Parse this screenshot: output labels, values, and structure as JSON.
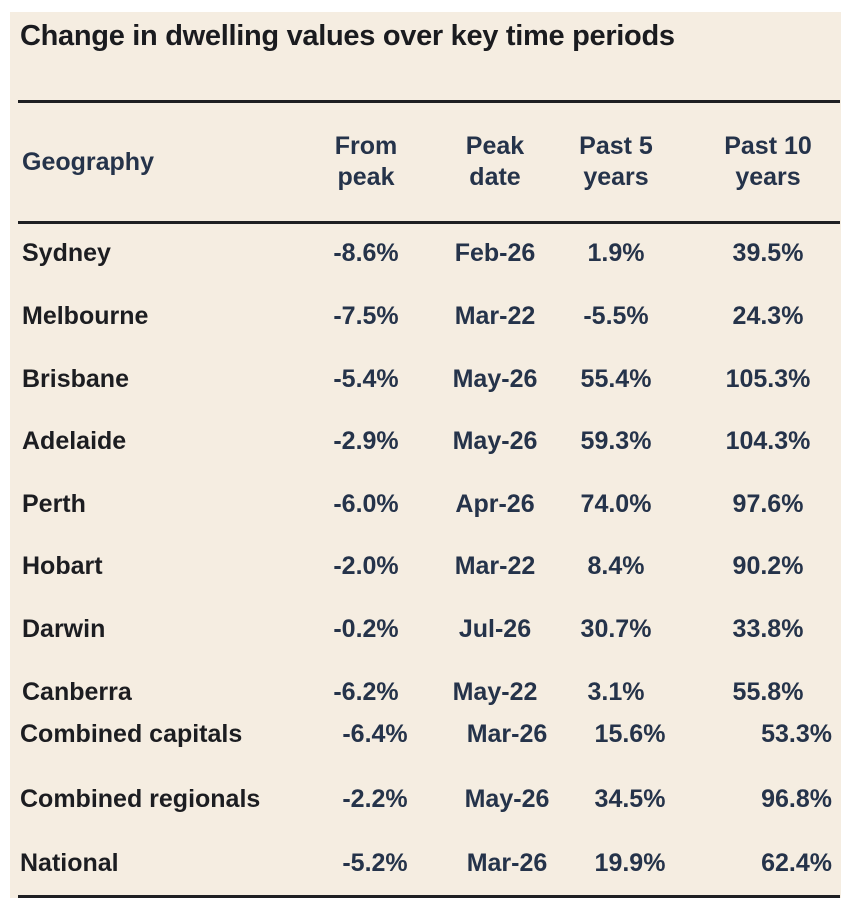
{
  "title": "Change in dwelling values over key time periods",
  "headers": {
    "geography": "Geography",
    "from_peak": [
      "From",
      "peak"
    ],
    "peak_date": [
      "Peak",
      "date"
    ],
    "past5": [
      "Past 5",
      "years"
    ],
    "past10": [
      "Past 10",
      "years"
    ]
  },
  "rows": [
    {
      "geography": "Sydney",
      "from_peak": "-8.6%",
      "peak_date": "Feb-26",
      "past5": "1.9%",
      "past10": "39.5%"
    },
    {
      "geography": "Melbourne",
      "from_peak": "-7.5%",
      "peak_date": "Mar-22",
      "past5": "-5.5%",
      "past10": "24.3%"
    },
    {
      "geography": "Brisbane",
      "from_peak": "-5.4%",
      "peak_date": "May-26",
      "past5": "55.4%",
      "past10": "105.3%"
    },
    {
      "geography": "Adelaide",
      "from_peak": "-2.9%",
      "peak_date": "May-26",
      "past5": "59.3%",
      "past10": "104.3%"
    },
    {
      "geography": "Perth",
      "from_peak": "-6.0%",
      "peak_date": "Apr-26",
      "past5": "74.0%",
      "past10": "97.6%"
    },
    {
      "geography": "Hobart",
      "from_peak": "-2.0%",
      "peak_date": "Mar-22",
      "past5": "8.4%",
      "past10": "90.2%"
    },
    {
      "geography": "Darwin",
      "from_peak": "-0.2%",
      "peak_date": "Jul-26",
      "past5": "30.7%",
      "past10": "33.8%"
    },
    {
      "geography": "Canberra",
      "from_peak": "-6.2%",
      "peak_date": "May-22",
      "past5": "3.1%",
      "past10": "55.8%"
    }
  ],
  "summary_rows": [
    {
      "geography": "Combined capitals",
      "from_peak": "-6.4%",
      "peak_date": "Mar-26",
      "past5": "15.6%",
      "past10": "53.3%"
    },
    {
      "geography": "Combined regionals",
      "from_peak": "-2.2%",
      "peak_date": "May-26",
      "past5": "34.5%",
      "past10": "96.8%"
    },
    {
      "geography": "National",
      "from_peak": "-5.2%",
      "peak_date": "Mar-26",
      "past5": "19.9%",
      "past10": "62.4%"
    }
  ]
}
